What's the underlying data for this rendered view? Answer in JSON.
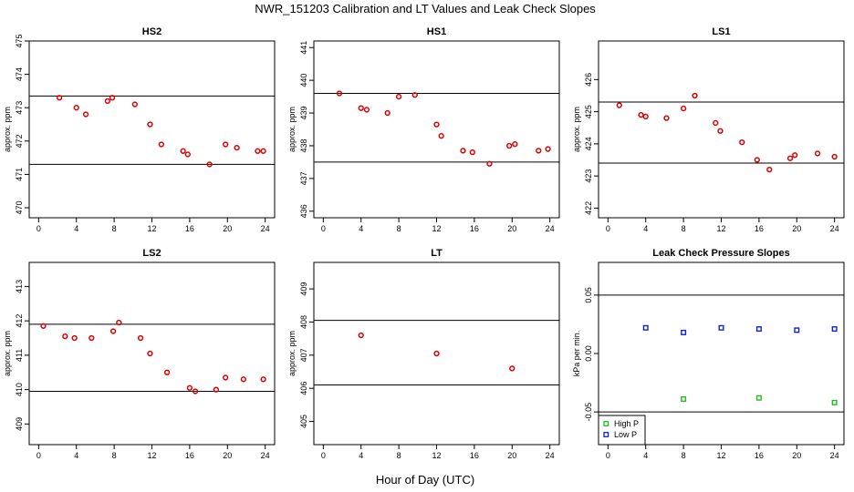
{
  "figure": {
    "title": "NWR_151203  Calibration and LT Values and Leak Check Slopes",
    "xlabel": "Hour of Day (UTC)"
  },
  "chart_data": [
    {
      "type": "scatter",
      "title": "HS2",
      "ylabel": "approx. ppm",
      "xlim": [
        -1,
        25
      ],
      "ylim": [
        469.7,
        475
      ],
      "xticks": [
        0,
        4,
        8,
        12,
        16,
        20,
        24
      ],
      "yticks": [
        470,
        471,
        472,
        473,
        474,
        475
      ],
      "hlines": [
        473.35,
        471.3
      ],
      "series": [
        {
          "color": "#dd0000",
          "marker": "circle",
          "x": [
            2.2,
            4.0,
            5.0,
            7.3,
            7.8,
            10.2,
            11.8,
            13.0,
            15.3,
            15.8,
            18.1,
            19.8,
            21.0,
            23.2,
            23.8
          ],
          "y": [
            473.3,
            473.0,
            472.8,
            473.2,
            473.3,
            473.1,
            472.5,
            471.9,
            471.7,
            471.6,
            471.3,
            471.9,
            471.8,
            471.7,
            471.7
          ]
        }
      ]
    },
    {
      "type": "scatter",
      "title": "HS1",
      "ylabel": "approx. ppm",
      "xlim": [
        -1,
        25
      ],
      "ylim": [
        435.8,
        441.2
      ],
      "xticks": [
        0,
        4,
        8,
        12,
        16,
        20,
        24
      ],
      "yticks": [
        436,
        437,
        438,
        439,
        440,
        441
      ],
      "hlines": [
        439.6,
        437.5
      ],
      "series": [
        {
          "color": "#dd0000",
          "marker": "circle",
          "x": [
            1.7,
            4.0,
            4.6,
            6.8,
            8.0,
            9.7,
            12.0,
            12.5,
            14.8,
            15.8,
            17.6,
            19.7,
            20.3,
            22.8,
            23.8
          ],
          "y": [
            439.6,
            439.15,
            439.1,
            439.0,
            439.5,
            439.55,
            438.65,
            438.3,
            437.85,
            437.8,
            437.45,
            438.0,
            438.05,
            437.85,
            437.9
          ]
        }
      ]
    },
    {
      "type": "scatter",
      "title": "LS1",
      "ylabel": "approx. ppm",
      "xlim": [
        -1,
        25
      ],
      "ylim": [
        421.7,
        427.2
      ],
      "xticks": [
        0,
        4,
        8,
        12,
        16,
        20,
        24
      ],
      "yticks": [
        422,
        423,
        424,
        425,
        426
      ],
      "hlines": [
        425.3,
        423.4
      ],
      "series": [
        {
          "color": "#dd0000",
          "marker": "circle",
          "x": [
            1.2,
            3.5,
            4.0,
            6.2,
            8.0,
            9.2,
            11.4,
            11.9,
            14.2,
            15.8,
            17.1,
            19.3,
            19.8,
            22.2,
            24.0
          ],
          "y": [
            425.2,
            424.9,
            424.85,
            424.8,
            425.1,
            425.5,
            424.65,
            424.4,
            424.05,
            423.5,
            423.2,
            423.55,
            423.65,
            423.7,
            423.6
          ]
        }
      ]
    },
    {
      "type": "scatter",
      "title": "LS2",
      "ylabel": "approx. ppm",
      "xlim": [
        -1,
        25
      ],
      "ylim": [
        408.4,
        413.7
      ],
      "xticks": [
        0,
        4,
        8,
        12,
        16,
        20,
        24
      ],
      "yticks": [
        409,
        410,
        411,
        412,
        413
      ],
      "hlines": [
        411.9,
        409.95
      ],
      "series": [
        {
          "color": "#dd0000",
          "marker": "circle",
          "x": [
            0.5,
            2.8,
            3.8,
            5.6,
            7.9,
            8.5,
            10.8,
            11.8,
            13.6,
            16.0,
            16.6,
            18.8,
            19.8,
            21.7,
            23.8
          ],
          "y": [
            411.85,
            411.55,
            411.5,
            411.5,
            411.7,
            411.95,
            411.5,
            411.05,
            410.5,
            410.05,
            409.95,
            410.0,
            410.35,
            410.3,
            410.3
          ]
        }
      ]
    },
    {
      "type": "scatter",
      "title": "LT",
      "ylabel": "approx. ppm",
      "xlim": [
        -1,
        25
      ],
      "ylim": [
        404.3,
        409.8
      ],
      "xticks": [
        0,
        4,
        8,
        12,
        16,
        20,
        24
      ],
      "yticks": [
        405,
        406,
        407,
        408,
        409
      ],
      "hlines": [
        408.05,
        406.1
      ],
      "series": [
        {
          "color": "#dd0000",
          "marker": "circle",
          "x": [
            4.0,
            12.0,
            20.0
          ],
          "y": [
            407.6,
            407.05,
            406.6
          ]
        }
      ]
    },
    {
      "type": "scatter",
      "title": "Leak Check Pressure Slopes",
      "ylabel": "kPa per min.",
      "xlim": [
        -1,
        25
      ],
      "ylim": [
        -0.078,
        0.078
      ],
      "xticks": [
        0,
        4,
        8,
        12,
        16,
        20,
        24
      ],
      "yticks": [
        -0.05,
        0.0,
        0.05
      ],
      "ytick_labels": [
        "-0.05",
        "0.00",
        "0.05"
      ],
      "hlines": [
        0.05,
        -0.05
      ],
      "legend": {
        "placement": "bottom-left"
      },
      "series": [
        {
          "name": "High P",
          "color": "#22bb22",
          "marker": "square",
          "x": [
            8.0,
            16.0,
            24.0
          ],
          "y": [
            -0.039,
            -0.038,
            -0.042
          ]
        },
        {
          "name": "Low P",
          "color": "#1122cc",
          "marker": "square",
          "x": [
            4.0,
            8.0,
            12.0,
            16.0,
            20.0,
            24.0
          ],
          "y": [
            0.022,
            0.018,
            0.022,
            0.021,
            0.02,
            0.021
          ]
        }
      ]
    }
  ]
}
